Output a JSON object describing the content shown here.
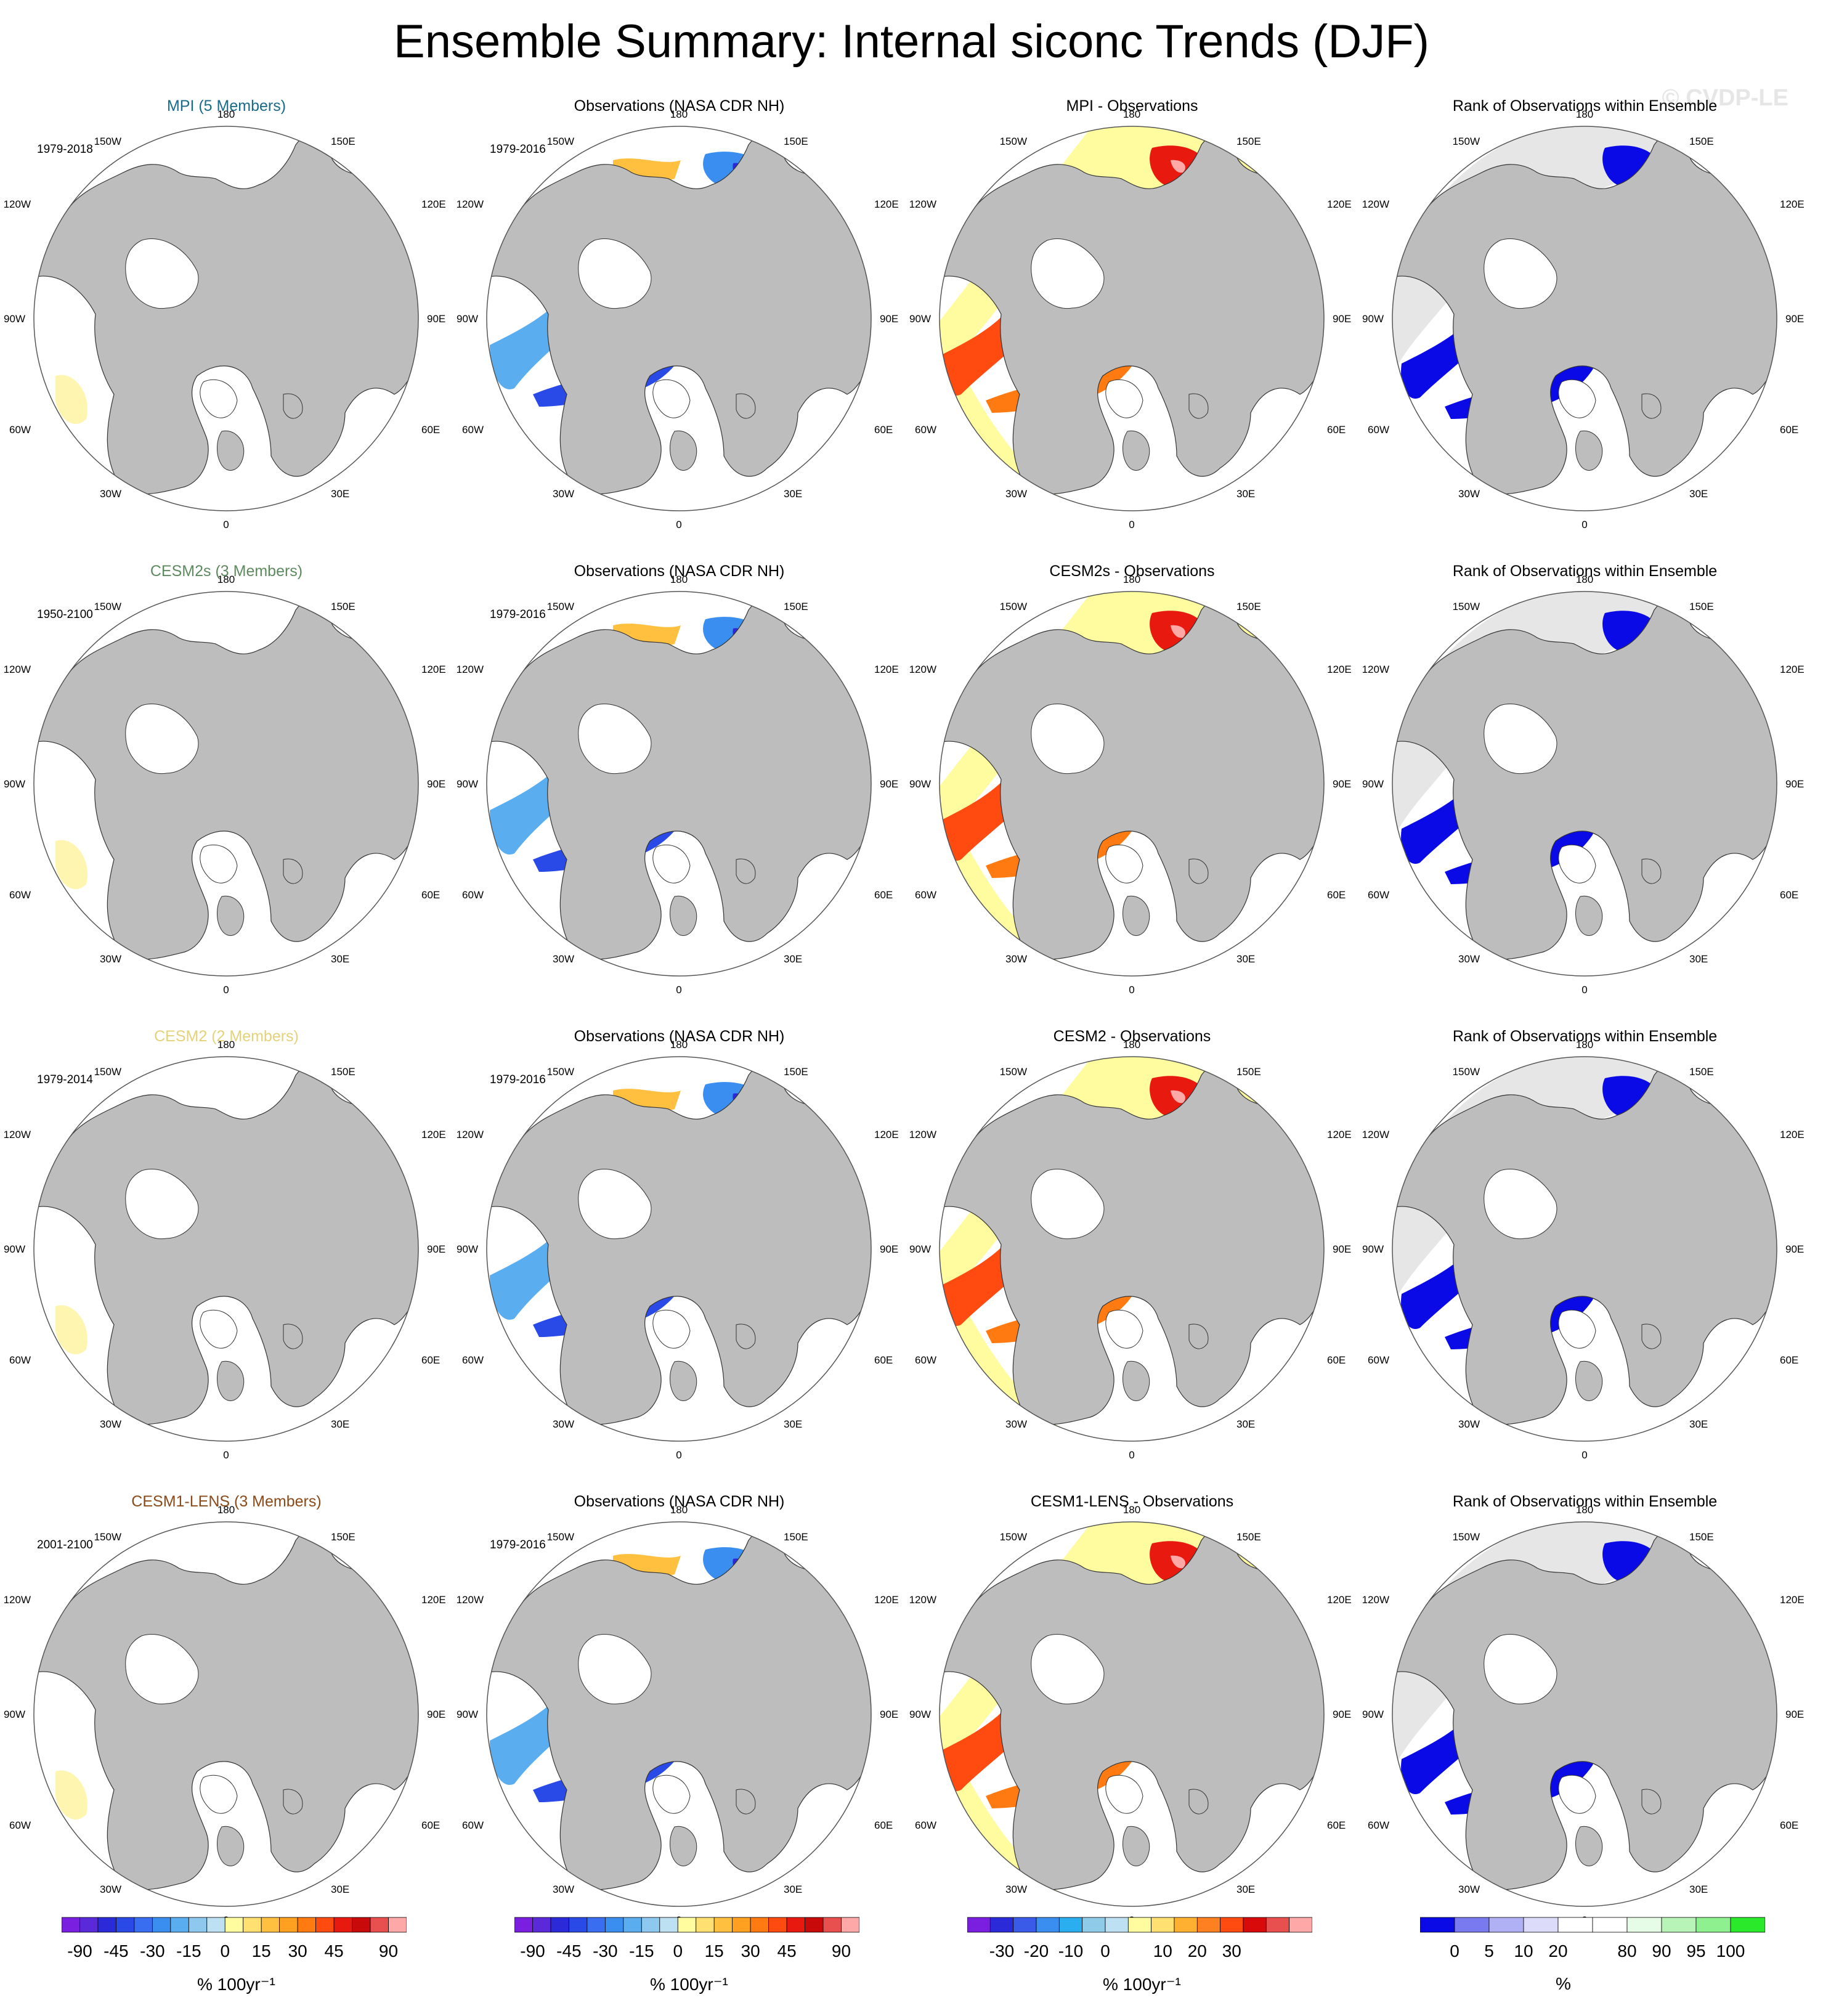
{
  "title": "Ensemble Summary: Internal siconc Trends (DJF)",
  "watermark": "© CVDP-LE",
  "lon_labels": {
    "l180": "180",
    "l150e": "150E",
    "l120e": "120E",
    "l90e": "90E",
    "l60e": "60E",
    "l30e": "30E",
    "l0": "0",
    "l30w": "30W",
    "l60w": "60W",
    "l90w": "90W",
    "l120w": "120W",
    "l150w": "150W"
  },
  "rows": [
    {
      "ensemble": "MPI (5 Members)",
      "ensemble_color": "#1a6b8a",
      "period": "1979-2018",
      "obs_title": "Observations (NASA CDR NH)",
      "obs_period": "1979-2016",
      "diff_title": "MPI - Observations",
      "rank_title": "Rank of Observations within Ensemble"
    },
    {
      "ensemble": "CESM2s (3 Members)",
      "ensemble_color": "#5f8a5f",
      "period": "1950-2100",
      "obs_title": "Observations (NASA CDR NH)",
      "obs_period": "1979-2016",
      "diff_title": "CESM2s - Observations",
      "rank_title": "Rank of Observations within Ensemble"
    },
    {
      "ensemble": "CESM2 (2 Members)",
      "ensemble_color": "#e3d27a",
      "period": "1979-2014",
      "obs_title": "Observations (NASA CDR NH)",
      "obs_period": "1979-2016",
      "diff_title": "CESM2 - Observations",
      "rank_title": "Rank of Observations within Ensemble"
    },
    {
      "ensemble": "CESM1-LENS (3 Members)",
      "ensemble_color": "#8a4a1a",
      "period": "2001-2100",
      "obs_title": "Observations (NASA CDR NH)",
      "obs_period": "1979-2016",
      "diff_title": "CESM1-LENS - Observations",
      "rank_title": "Rank of Observations within Ensemble"
    }
  ],
  "colorbars": {
    "trend": {
      "colors": [
        "#7a1fe0",
        "#5a2ad8",
        "#2a2ad8",
        "#2a4ae8",
        "#3a6ef0",
        "#3a8ef0",
        "#5aaef0",
        "#8fc8ee",
        "#bde0f2",
        "#fffca0",
        "#ffe070",
        "#ffc040",
        "#ffa020",
        "#ff7a10",
        "#ff4a10",
        "#e81a10",
        "#c80a0a",
        "#e85050",
        "#ffa8a8"
      ],
      "labels": [
        "-90",
        "-45",
        "-30",
        "-15",
        "0",
        "15",
        "30",
        "45",
        "90"
      ],
      "unit": "% 100yr⁻¹"
    },
    "diff": {
      "colors": [
        "#7a1fe0",
        "#2a2ad8",
        "#3a5ae8",
        "#3a8ef0",
        "#2aaef0",
        "#8fcae8",
        "#bde0f2",
        "#fffca0",
        "#ffe070",
        "#ffb030",
        "#ff8020",
        "#ff4a10",
        "#d80a0a",
        "#e85050",
        "#ffa8a8"
      ],
      "labels": [
        "-30",
        "-20",
        "-10",
        "0",
        "10",
        "20",
        "30"
      ],
      "unit": "% 100yr⁻¹"
    },
    "rank": {
      "colors": [
        "#0a0ae6",
        "#7a7af0",
        "#b0b0f4",
        "#dcdcfa",
        "#ffffff",
        "#ffffff",
        "#e6fce6",
        "#b8f4b8",
        "#8ef08e",
        "#2ae82a"
      ],
      "labels": [
        "0",
        "5",
        "10",
        "20",
        "80",
        "90",
        "95",
        "100"
      ],
      "unit": "%"
    }
  }
}
